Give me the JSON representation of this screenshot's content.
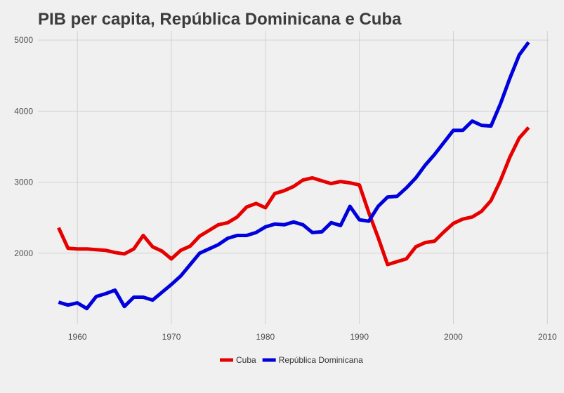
{
  "chart_data": {
    "type": "line",
    "title": "PIB per capita, República Dominicana e Cuba",
    "xlabel": "",
    "ylabel": "",
    "xlim": [
      1955.8,
      2010.2
    ],
    "ylim": [
      1000,
      5130
    ],
    "xticks": [
      1960,
      1970,
      1980,
      1990,
      2000,
      2010
    ],
    "yticks": [
      2000,
      3000,
      4000,
      5000
    ],
    "grid": true,
    "legend": "bottom",
    "series": [
      {
        "name": "Cuba",
        "color": "#e60000",
        "x": [
          1958,
          1959,
          1960,
          1961,
          1962,
          1963,
          1964,
          1965,
          1966,
          1967,
          1968,
          1969,
          1970,
          1971,
          1972,
          1973,
          1974,
          1975,
          1976,
          1977,
          1978,
          1979,
          1980,
          1981,
          1982,
          1983,
          1984,
          1985,
          1986,
          1987,
          1988,
          1989,
          1990,
          1991,
          1992,
          1993,
          1994,
          1995,
          1996,
          1997,
          1998,
          1999,
          2000,
          2001,
          2002,
          2003,
          2004,
          2005,
          2006,
          2007,
          2008
        ],
        "y": [
          2360,
          2070,
          2060,
          2060,
          2050,
          2040,
          2010,
          1990,
          2060,
          2250,
          2090,
          2030,
          1920,
          2040,
          2100,
          2240,
          2320,
          2400,
          2430,
          2510,
          2650,
          2700,
          2640,
          2840,
          2880,
          2940,
          3030,
          3060,
          3020,
          2980,
          3010,
          2990,
          2960,
          2570,
          2220,
          1840,
          1880,
          1920,
          2090,
          2150,
          2170,
          2300,
          2420,
          2480,
          2510,
          2590,
          2740,
          3020,
          3350,
          3620,
          3770
        ]
      },
      {
        "name": "República Dominicana",
        "color": "#0000dc",
        "x": [
          1958,
          1959,
          1960,
          1961,
          1962,
          1963,
          1964,
          1965,
          1966,
          1967,
          1968,
          1969,
          1970,
          1971,
          1972,
          1973,
          1974,
          1975,
          1976,
          1977,
          1978,
          1979,
          1980,
          1981,
          1982,
          1983,
          1984,
          1985,
          1986,
          1987,
          1988,
          1989,
          1990,
          1991,
          1992,
          1993,
          1994,
          1995,
          1996,
          1997,
          1998,
          1999,
          2000,
          2001,
          2002,
          2003,
          2004,
          2005,
          2006,
          2007,
          2008
        ],
        "y": [
          1310,
          1270,
          1300,
          1220,
          1390,
          1430,
          1480,
          1250,
          1380,
          1380,
          1340,
          1450,
          1560,
          1680,
          1840,
          2000,
          2060,
          2120,
          2210,
          2250,
          2250,
          2290,
          2370,
          2410,
          2400,
          2440,
          2400,
          2290,
          2300,
          2430,
          2390,
          2660,
          2470,
          2450,
          2660,
          2790,
          2800,
          2920,
          3060,
          3240,
          3390,
          3560,
          3730,
          3730,
          3860,
          3800,
          3790,
          4100,
          4460,
          4790,
          4970
        ]
      }
    ]
  }
}
